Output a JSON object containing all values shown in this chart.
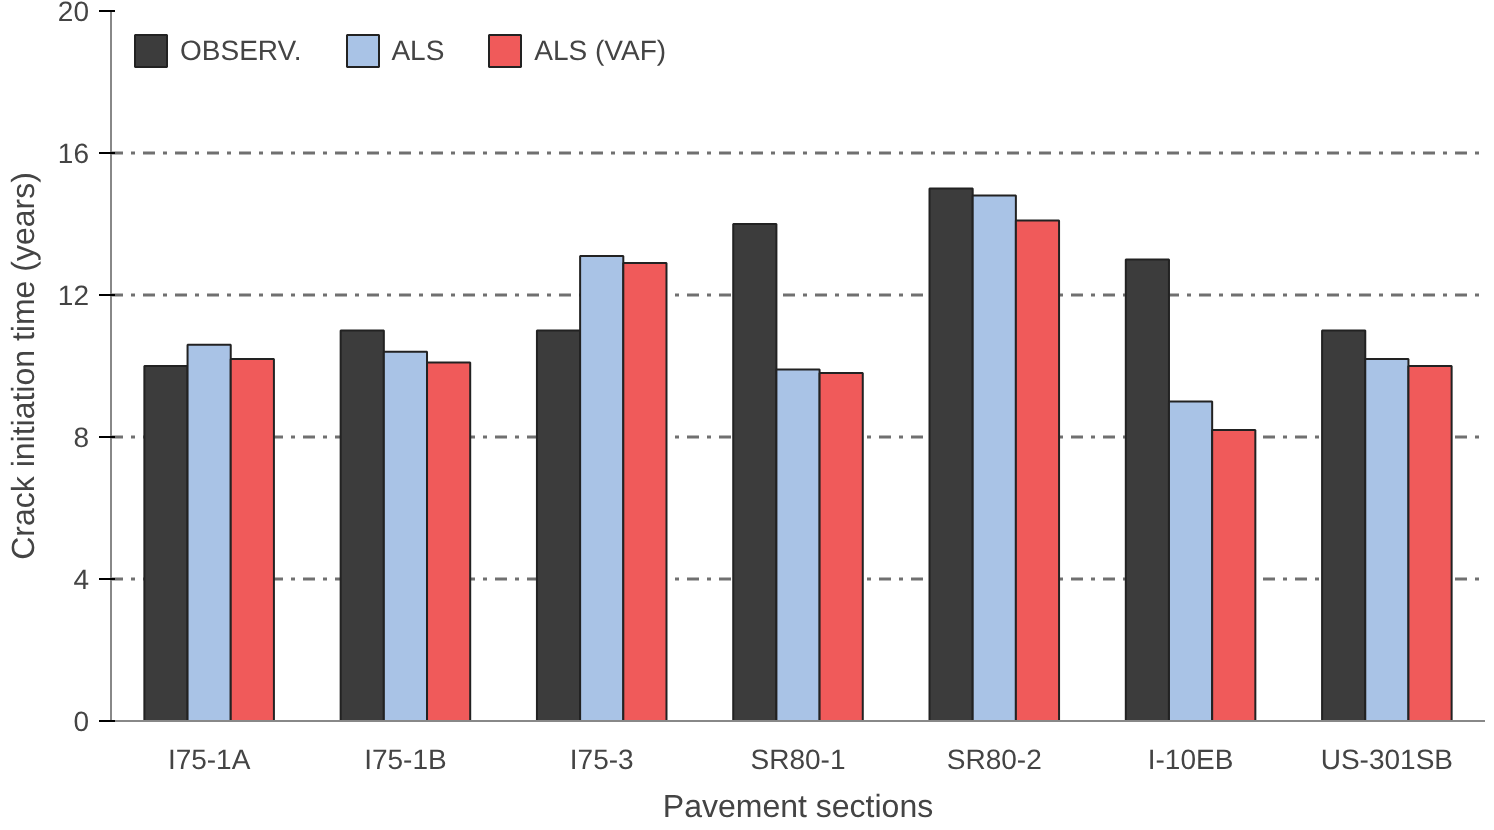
{
  "chart_data": {
    "type": "bar",
    "xlabel": "Pavement sections",
    "ylabel": "Crack initiation time (years)",
    "categories": [
      "I75-1A",
      "I75-1B",
      "I75-3",
      "SR80-1",
      "SR80-2",
      "I-10EB",
      "US-301SB"
    ],
    "series": [
      {
        "name": "OBSERV.",
        "color": "#3c3c3c",
        "values": [
          10,
          11,
          11,
          14,
          15,
          13,
          11
        ]
      },
      {
        "name": "ALS",
        "color": "#a9c3e6",
        "values": [
          10.6,
          10.4,
          13.1,
          9.9,
          14.8,
          9.0,
          10.2
        ]
      },
      {
        "name": "ALS (VAF)",
        "color": "#f05a5a",
        "values": [
          10.2,
          10.1,
          12.9,
          9.8,
          14.1,
          8.2,
          10.0
        ]
      }
    ],
    "ylim": [
      0,
      20
    ],
    "yticks": [
      0,
      4,
      8,
      12,
      16,
      20
    ],
    "grid": "y",
    "legend": "top left"
  }
}
